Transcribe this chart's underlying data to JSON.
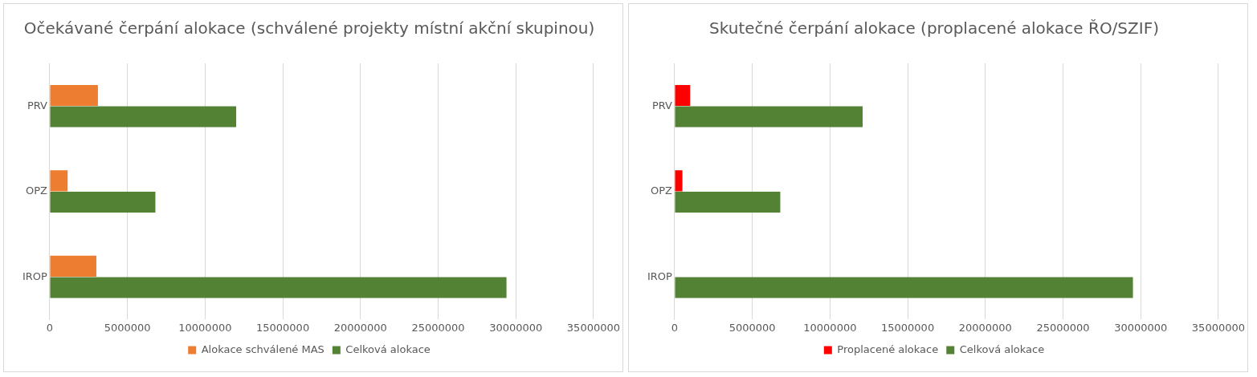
{
  "chart_data": [
    {
      "type": "bar",
      "orientation": "horizontal",
      "title": "Očekávané čerpání alokace (schválené projekty místní akční skupinou)",
      "categories": [
        "PRV",
        "OPZ",
        "IROP"
      ],
      "series": [
        {
          "name": "Alokace schválené MAS",
          "color": "#ed7d31",
          "values": [
            3100000,
            1150000,
            3000000
          ]
        },
        {
          "name": "Celková alokace",
          "color": "#548235",
          "values": [
            12000000,
            6800000,
            29400000
          ]
        }
      ],
      "xlim": [
        0,
        35000000
      ],
      "xticks": [
        0,
        5000000,
        10000000,
        15000000,
        20000000,
        25000000,
        30000000,
        35000000
      ],
      "grid": "x",
      "legend": "bottom"
    },
    {
      "type": "bar",
      "orientation": "horizontal",
      "title": "Skutečné čerpání alokace (proplacené alokace ŘO/SZIF)",
      "categories": [
        "PRV",
        "OPZ",
        "IROP"
      ],
      "series": [
        {
          "name": "Proplacené alokace",
          "color": "#ff0000",
          "values": [
            1000000,
            500000,
            0
          ]
        },
        {
          "name": "Celková alokace",
          "color": "#548235",
          "values": [
            12100000,
            6800000,
            29500000
          ]
        }
      ],
      "xlim": [
        0,
        35000000
      ],
      "xticks": [
        0,
        5000000,
        10000000,
        15000000,
        20000000,
        25000000,
        30000000,
        35000000
      ],
      "grid": "x",
      "legend": "bottom"
    }
  ]
}
